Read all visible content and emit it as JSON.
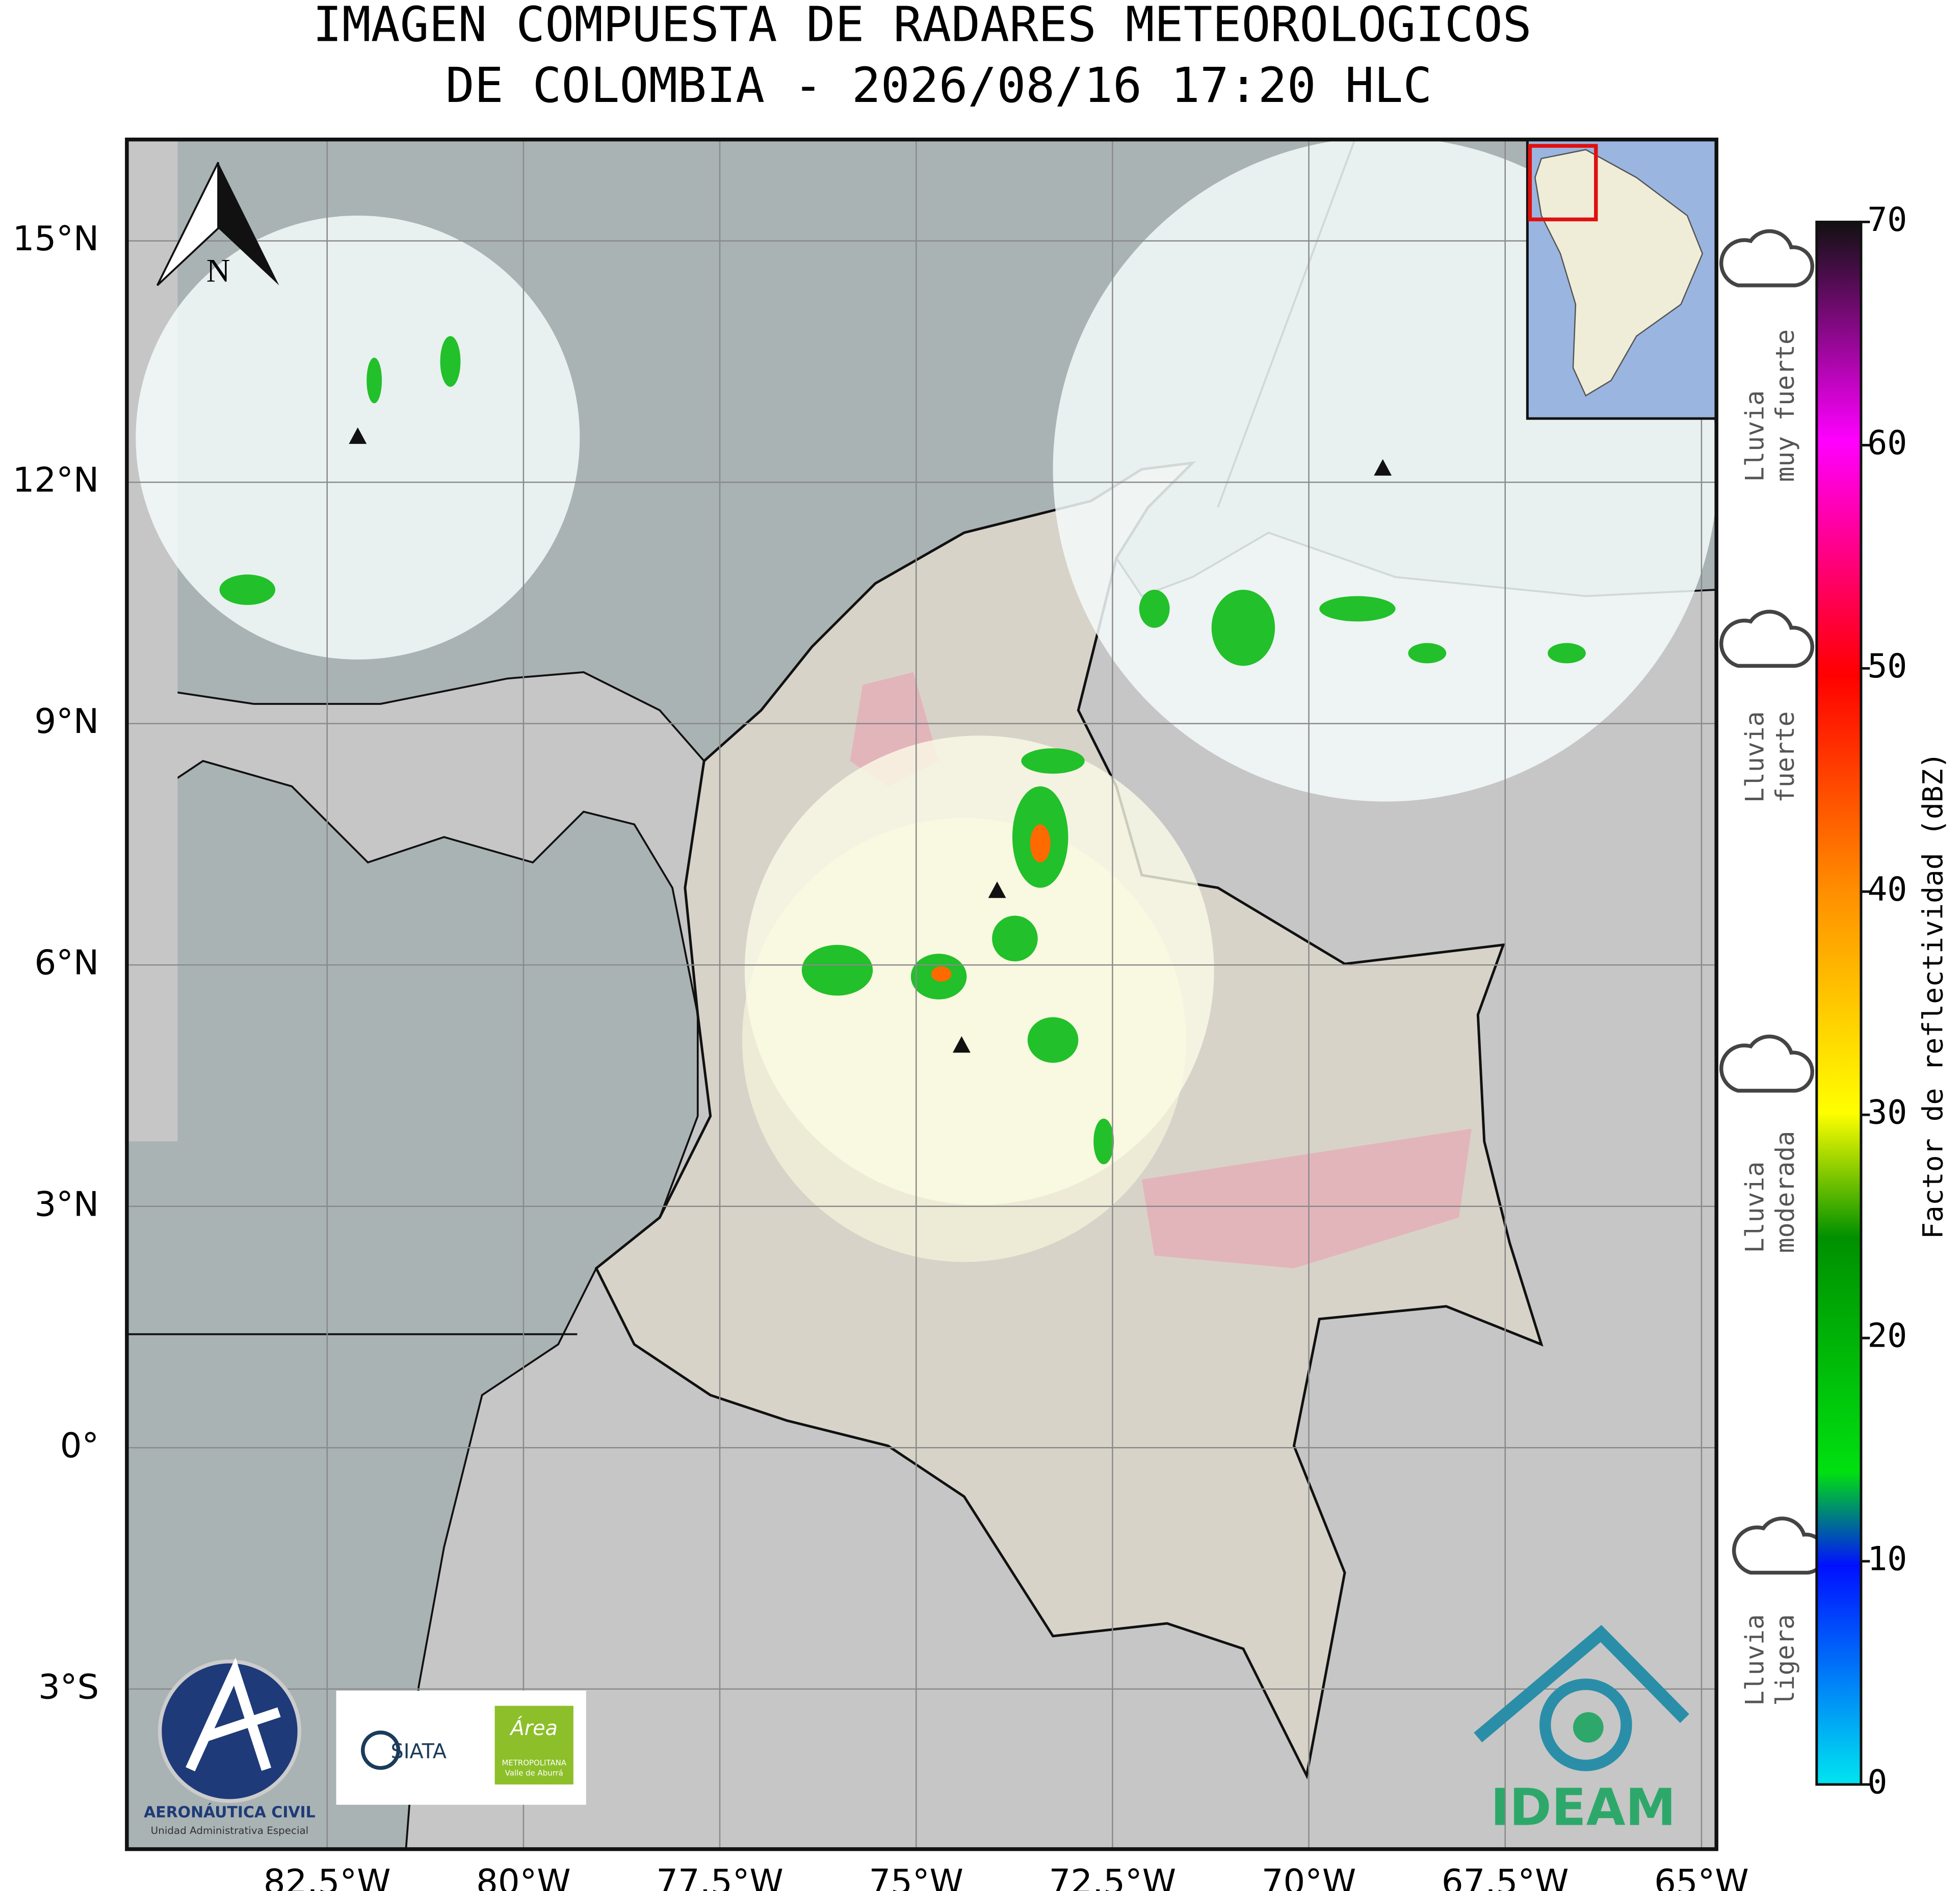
{
  "title": [
    "IMAGEN COMPUESTA DE RADARES METEOROLOGICOS",
    "DE COLOMBIA - 2026/08/16 17:20 HLC"
  ],
  "map": {
    "xlim": [
      -85.05,
      -64.81
    ],
    "ylim": [
      -4.99,
      16.26
    ],
    "xticks": [
      {
        "value": -82.5,
        "label": "82.5°W"
      },
      {
        "value": -80,
        "label": "80°W"
      },
      {
        "value": -77.5,
        "label": "77.5°W"
      },
      {
        "value": -75,
        "label": "75°W"
      },
      {
        "value": -72.5,
        "label": "72.5°W"
      },
      {
        "value": -70,
        "label": "70°W"
      },
      {
        "value": -67.5,
        "label": "67.5°W"
      },
      {
        "value": -65,
        "label": "65°W"
      }
    ],
    "yticks": [
      {
        "value": 15,
        "label": "15°N"
      },
      {
        "value": 12,
        "label": "12°N"
      },
      {
        "value": 9,
        "label": "9°N"
      },
      {
        "value": 6,
        "label": "6°N"
      },
      {
        "value": 3,
        "label": "3°N"
      },
      {
        "value": 0,
        "label": "0°"
      },
      {
        "value": -3,
        "label": "3°S"
      }
    ],
    "grid": true,
    "north_label": "N"
  },
  "colorbar": {
    "label": "Factor de reflectividad (dBZ)",
    "lim": [
      0,
      70
    ],
    "ticks": [
      0,
      10,
      20,
      30,
      40,
      50,
      60,
      70
    ]
  },
  "legend": [
    [
      "Lluvia",
      "muy fuerte"
    ],
    [
      "Lluvia",
      "fuerte"
    ],
    [
      "Lluvia",
      "moderada"
    ],
    [
      "Lluvia",
      "ligera"
    ]
  ],
  "logos": {
    "aerocivil": "AERONÁUTICA CIVIL",
    "aerocivil_sub": "Unidad Administrativa Especial",
    "siata": "SIATA",
    "area": "Área",
    "area_sub1": "METROPOLITANA",
    "area_sub2": "Valle de Aburrá",
    "ideam": "IDEAM"
  }
}
